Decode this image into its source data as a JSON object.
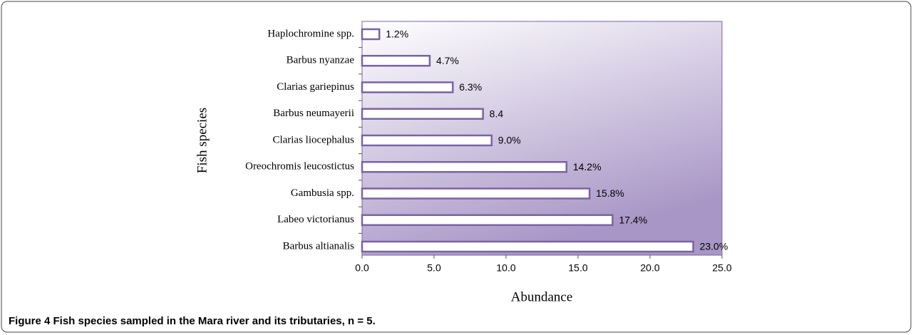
{
  "chart_data": {
    "type": "bar",
    "orientation": "horizontal",
    "caption": "Figure 4 Fish species sampled in the Mara river and its tributaries, n = 5.",
    "xlabel": "Abundance",
    "ylabel": "Fish species",
    "categories": [
      "Haplochromine spp.",
      "Barbus nyanzae",
      "Clarias gariepinus",
      "Barbus neumayerii",
      "Clarias liocephalus",
      "Oreochromis leucostictus",
      "Gambusia spp.",
      "Labeo victorianus",
      "Barbus altianalis"
    ],
    "values": [
      1.2,
      4.7,
      6.3,
      8.4,
      9.0,
      14.2,
      15.8,
      17.4,
      23.0
    ],
    "value_labels": [
      "1.2%",
      "4.7%",
      "6.3%",
      "8.4",
      "9.0%",
      "14.2%",
      "15.8%",
      "17.4%",
      "23.0%"
    ],
    "color": "#ffffff",
    "edge_color": "#7b63a3",
    "xlim": [
      0,
      25
    ],
    "xticks": [
      {
        "value": 0,
        "label": "0.0"
      },
      {
        "value": 5,
        "label": "5.0"
      },
      {
        "value": 10,
        "label": "10.0"
      },
      {
        "value": 15,
        "label": "15.0"
      },
      {
        "value": 20,
        "label": "20.0"
      },
      {
        "value": 25,
        "label": "25.0"
      }
    ]
  }
}
